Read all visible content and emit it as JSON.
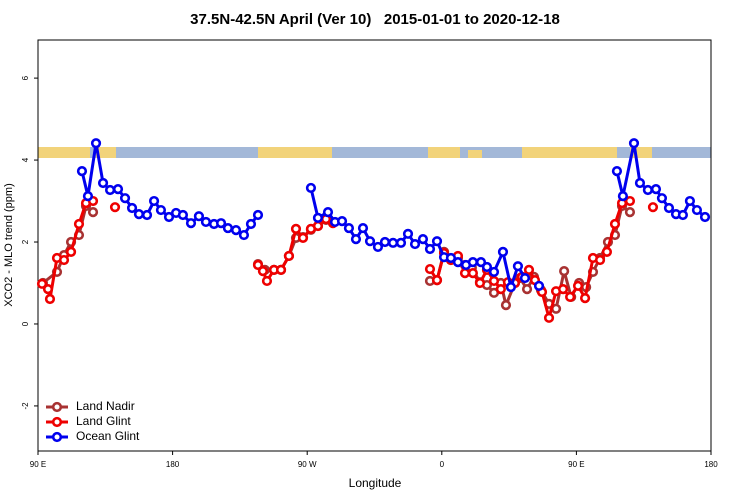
{
  "chart_data": {
    "type": "line",
    "title": "37.5N-42.5N April (Ver 10)   2015-01-01 to 2020-12-18",
    "x_label": "Longitude",
    "y_label": "XCO2 - MLO trend (ppm)",
    "xlim": [
      90,
      540
    ],
    "ylim": [
      -3.1,
      6.93
    ],
    "xticks": [
      {
        "value": 90,
        "label": "90 E"
      },
      180,
      {
        "value": 270,
        "label": "90 W"
      },
      {
        "value": 360,
        "label": "0"
      },
      {
        "value": 450,
        "label": "90 E"
      },
      {
        "value": 540,
        "label": "180"
      }
    ],
    "yticks": [
      -2,
      0,
      2,
      4,
      6
    ],
    "legend": "bottom-left",
    "series": [
      {
        "name": "Land Nadir",
        "color": "#a83232",
        "x": [
          93.3,
          102.7,
          107.4,
          112.1,
          117.4,
          122.1,
          126.8,
          null,
          237.1,
          241.7,
          247.8,
          252.5,
          257.8,
          262.5,
          267.2,
          272.5,
          277.2,
          282.6,
          null,
          352.1,
          356.8,
          361.5,
          366.1,
          370.8,
          375.5,
          380.1,
          385.5,
          390.2,
          394.9,
          399.5,
          402.9,
          408.9,
          412.3,
          417.0,
          421.6,
          426.3,
          431.7,
          436.4,
          441.8,
          446.5,
          451.8,
          456.5,
          461.1,
          465.8,
          471.1,
          475.8,
          480.5,
          485.8
        ],
        "values": [
          1.0,
          1.27,
          1.68,
          2.0,
          2.17,
          2.88,
          2.73,
          null,
          1.46,
          1.32,
          1.32,
          1.32,
          1.66,
          2.1,
          2.12,
          2.3,
          2.39,
          2.54,
          null,
          1.05,
          1.07,
          1.76,
          1.56,
          1.61,
          1.44,
          1.37,
          1.02,
          0.95,
          0.76,
          1.0,
          0.46,
          1.0,
          1.12,
          0.85,
          1.15,
          0.83,
          0.49,
          0.37,
          1.29,
          0.66,
          1.0,
          0.9,
          1.27,
          1.61,
          2.0,
          2.17,
          2.88,
          2.73
        ]
      },
      {
        "name": "Land Glint",
        "color": "#ee0000",
        "x": [
          92.7,
          96.7,
          98.0,
          102.7,
          107.4,
          112.1,
          117.4,
          122.1,
          126.8,
          null,
          141.5,
          null,
          237.1,
          240.4,
          243.1,
          247.8,
          252.5,
          257.8,
          262.5,
          267.2,
          272.5,
          277.2,
          282.6,
          287.2,
          null,
          352.1,
          356.8,
          361.5,
          366.1,
          370.8,
          375.5,
          380.8,
          385.5,
          390.2,
          394.9,
          399.5,
          404.2,
          408.9,
          413.6,
          418.3,
          422.3,
          427.0,
          431.7,
          436.4,
          441.1,
          445.8,
          451.1,
          455.8,
          461.1,
          465.8,
          470.4,
          475.8,
          480.5,
          485.8,
          null,
          501.2
        ],
        "values": [
          0.98,
          0.85,
          0.61,
          1.61,
          1.56,
          1.76,
          2.44,
          2.95,
          3.0,
          null,
          2.85,
          null,
          1.44,
          1.29,
          1.05,
          1.32,
          1.32,
          1.66,
          2.32,
          2.1,
          2.32,
          2.39,
          2.56,
          2.46,
          null,
          1.34,
          1.07,
          1.73,
          1.56,
          1.66,
          1.24,
          1.24,
          1.0,
          1.32,
          1.05,
          0.85,
          1.02,
          1.0,
          1.15,
          1.32,
          1.07,
          0.78,
          0.15,
          0.8,
          0.85,
          0.66,
          0.93,
          0.63,
          1.61,
          1.56,
          1.76,
          2.44,
          2.95,
          3.0,
          null,
          2.85
        ]
      },
      {
        "name": "Ocean Glint",
        "color": "#0000ee",
        "x": [
          119.4,
          123.4,
          128.8,
          133.5,
          138.2,
          143.5,
          148.2,
          152.9,
          157.5,
          162.9,
          167.6,
          172.2,
          177.6,
          182.3,
          186.9,
          192.3,
          197.6,
          202.3,
          207.7,
          212.4,
          217.0,
          222.4,
          227.7,
          232.4,
          237.1,
          null,
          272.5,
          277.2,
          283.9,
          288.6,
          293.3,
          297.9,
          302.6,
          307.3,
          312.0,
          317.3,
          322.0,
          327.4,
          332.7,
          337.4,
          342.1,
          347.4,
          352.1,
          356.8,
          361.5,
          366.1,
          370.8,
          376.2,
          380.8,
          386.2,
          390.2,
          394.9,
          400.9,
          406.2,
          410.9,
          415.6,
          null,
          425.0,
          null,
          477.1,
          481.1,
          488.5,
          492.5,
          497.8,
          503.2,
          507.2,
          511.9,
          516.6,
          521.2,
          525.9,
          530.6,
          536.0
        ],
        "values": [
          3.73,
          3.12,
          4.41,
          3.44,
          3.27,
          3.29,
          3.07,
          2.83,
          2.68,
          2.66,
          3.0,
          2.78,
          2.61,
          2.71,
          2.66,
          2.46,
          2.63,
          2.49,
          2.44,
          2.46,
          2.34,
          2.29,
          2.17,
          2.44,
          2.66,
          null,
          3.32,
          2.59,
          2.73,
          2.49,
          2.51,
          2.34,
          2.07,
          2.34,
          2.02,
          1.88,
          2.0,
          1.98,
          1.98,
          2.2,
          1.95,
          2.07,
          1.83,
          2.02,
          1.63,
          1.61,
          1.51,
          1.44,
          1.51,
          1.51,
          1.39,
          1.27,
          1.76,
          0.9,
          1.41,
          1.12,
          null,
          0.93,
          null,
          3.73,
          3.12,
          4.41,
          3.44,
          3.27,
          3.29,
          3.07,
          2.83,
          2.68,
          2.66,
          3.0,
          2.78,
          2.61
        ]
      }
    ]
  }
}
